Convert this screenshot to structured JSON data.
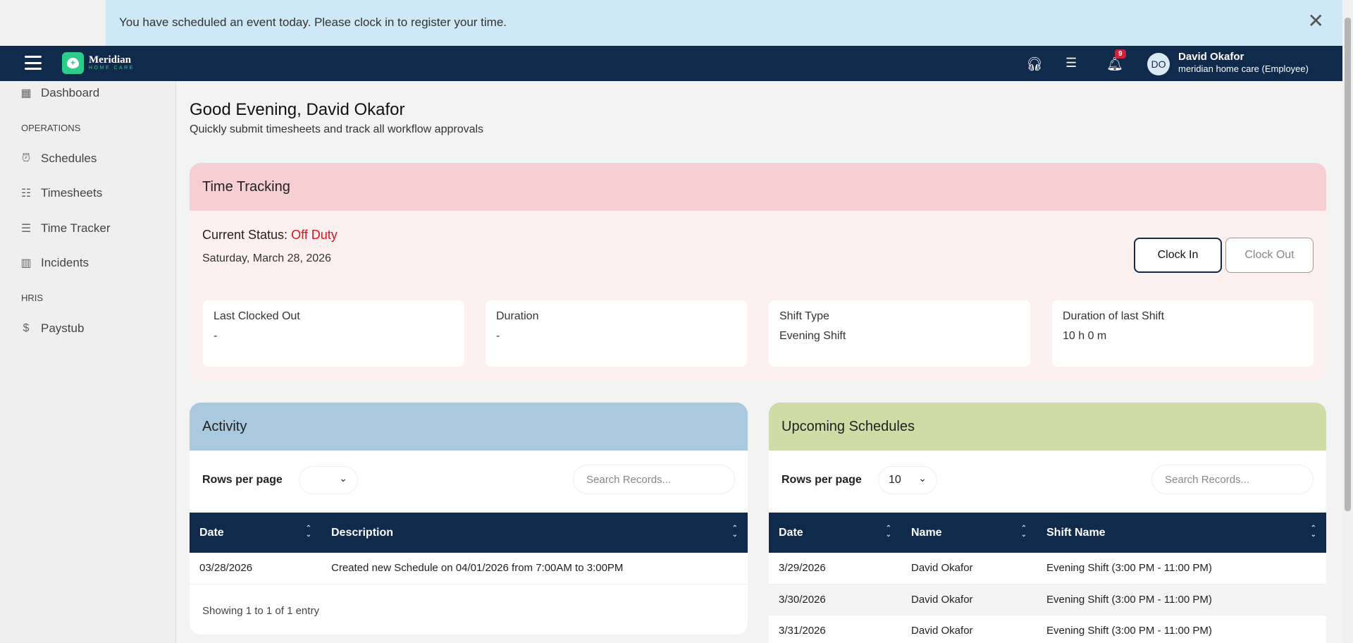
{
  "banner": {
    "message": "You have scheduled an event today. Please clock in to register your time.",
    "close": "✕"
  },
  "topbar": {
    "brand_name": "Meridian",
    "brand_tagline": "HOME CARE",
    "notification_count": "9",
    "avatar_initials": "DO",
    "user_name": "David Okafor",
    "user_role": "meridian home care (Employee)",
    "icons": [
      "headset-icon",
      "message-icon",
      "bell-icon"
    ]
  },
  "sidebar": {
    "dashboard": "Dashboard",
    "section_operations": "OPERATIONS",
    "schedules": "Schedules",
    "timesheets": "Timesheets",
    "time_tracker": "Time Tracker",
    "incidents": "Incidents",
    "section_hris": "HRIS",
    "paystub": "Paystub"
  },
  "main": {
    "greeting": "Good Evening, David Okafor",
    "subtitle": "Quickly submit timesheets and track all workflow approvals"
  },
  "time_tracking": {
    "title": "Time Tracking",
    "status_label": "Current Status:",
    "status_value": "Off Duty",
    "status_color": "#e0101a",
    "date": "Saturday, March 28, 2026",
    "clock_in": "Clock In",
    "clock_out": "Clock Out",
    "stats": [
      {
        "label": "Last Clocked Out",
        "value": "-"
      },
      {
        "label": "Duration",
        "value": "-"
      },
      {
        "label": "Shift Type",
        "value": "Evening Shift"
      },
      {
        "label": "Duration of last Shift",
        "value": "10 h 0 m"
      }
    ]
  },
  "activity": {
    "title": "Activity",
    "rows_per_page_label": "Rows per page",
    "rows_per_page_value": "",
    "search_placeholder": "Search Records...",
    "columns": [
      "Date",
      "Description"
    ],
    "rows": [
      [
        "03/28/2026",
        "Created new Schedule on 04/01/2026 from 7:00AM to 3:00PM"
      ]
    ],
    "footer": "Showing 1 to 1 of 1 entry"
  },
  "upcoming": {
    "title": "Upcoming Schedules",
    "rows_per_page_label": "Rows per page",
    "rows_per_page_value": "10",
    "search_placeholder": "Search Records...",
    "columns": [
      "Date",
      "Name",
      "Shift Name"
    ],
    "rows": [
      [
        "3/29/2026",
        "David Okafor",
        "Evening Shift (3:00 PM - 11:00 PM)"
      ],
      [
        "3/30/2026",
        "David Okafor",
        "Evening Shift (3:00 PM - 11:00 PM)"
      ],
      [
        "3/31/2026",
        "David Okafor",
        "Evening Shift (3:00 PM - 11:00 PM)"
      ]
    ]
  }
}
